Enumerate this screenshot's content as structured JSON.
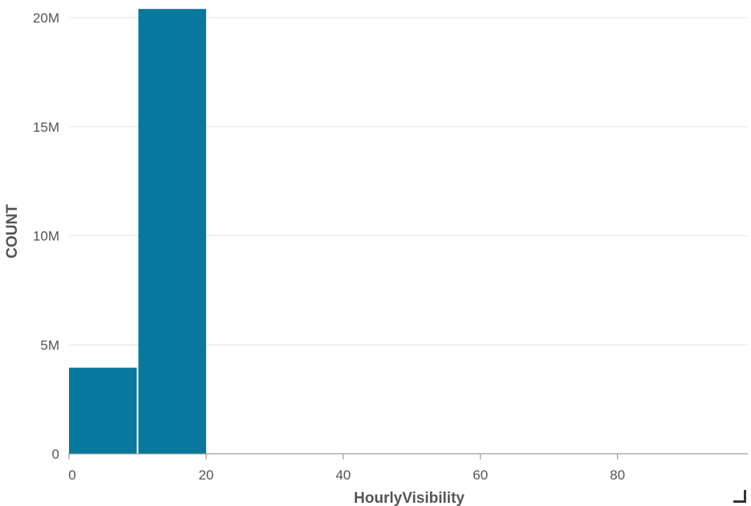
{
  "chart_data": {
    "type": "bar",
    "title": "",
    "xlabel": "HourlyVisibility",
    "ylabel": "COUNT",
    "bins": [
      [
        0,
        10
      ],
      [
        10,
        20
      ]
    ],
    "values": [
      3950000,
      20400000
    ],
    "xlim": [
      0,
      99
    ],
    "ylim": [
      0,
      20000000
    ],
    "xticks": [
      0,
      20,
      40,
      60,
      80
    ],
    "xtick_labels": [
      "0",
      "20",
      "40",
      "60",
      "80"
    ],
    "yticks": [
      0,
      5000000,
      10000000,
      15000000,
      20000000
    ],
    "ytick_labels": [
      "0",
      "5M",
      "10M",
      "15M",
      "20M"
    ],
    "grid": true,
    "bar_color": "#08799d"
  },
  "ui": {
    "resize_handle_icon": "resize-corner-icon"
  }
}
